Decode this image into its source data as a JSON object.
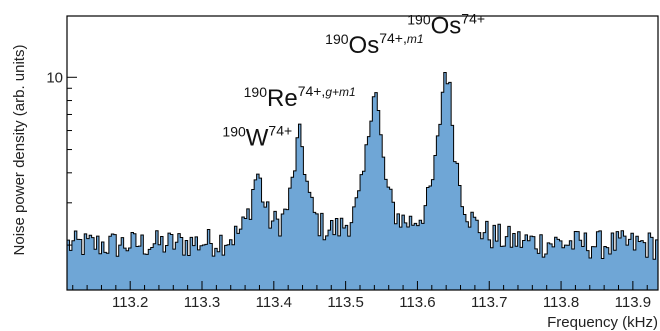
{
  "chart_data": {
    "type": "area",
    "title": "",
    "xlabel": "Frequency (kHz)",
    "ylabel": "Noise power density (arb. units)",
    "y_scale": "log",
    "xlim": [
      113.112,
      113.935
    ],
    "ylim": [
      1.3,
      18
    ],
    "colors": {
      "fill": "#6fa6d6",
      "line": "#000000"
    },
    "x_ticks": [
      113.2,
      113.3,
      113.4,
      113.5,
      113.6,
      113.7,
      113.8,
      113.9
    ],
    "x_tick_labels": [
      "113.2",
      "113.3",
      "113.4",
      "113.5",
      "113.6",
      "113.7",
      "113.8",
      "113.9"
    ],
    "y_ticks": [
      10
    ],
    "y_tick_labels": [
      "10"
    ],
    "background_level": 2.0,
    "peaks": [
      {
        "center": 113.377,
        "height": 4.0,
        "width": 0.009
      },
      {
        "center": 113.436,
        "height": 5.8,
        "width": 0.009
      },
      {
        "center": 113.54,
        "height": 9.5,
        "width": 0.009
      },
      {
        "center": 113.64,
        "height": 11.5,
        "width": 0.009
      }
    ],
    "annotations": [
      {
        "mass": "190",
        "element": "W",
        "charge": "74+",
        "state": "",
        "x": 113.377,
        "y": 5.2
      },
      {
        "mass": "190",
        "element": "Re",
        "charge": "74+,",
        "state": "g+m1",
        "x": 113.436,
        "y": 7.6
      },
      {
        "mass": "190",
        "element": "Os",
        "charge": "74+,",
        "state": "m1",
        "x": 113.54,
        "y": 12.6
      },
      {
        "mass": "190",
        "element": "Os",
        "charge": "74+",
        "state": "",
        "x": 113.64,
        "y": 15.2
      }
    ]
  }
}
